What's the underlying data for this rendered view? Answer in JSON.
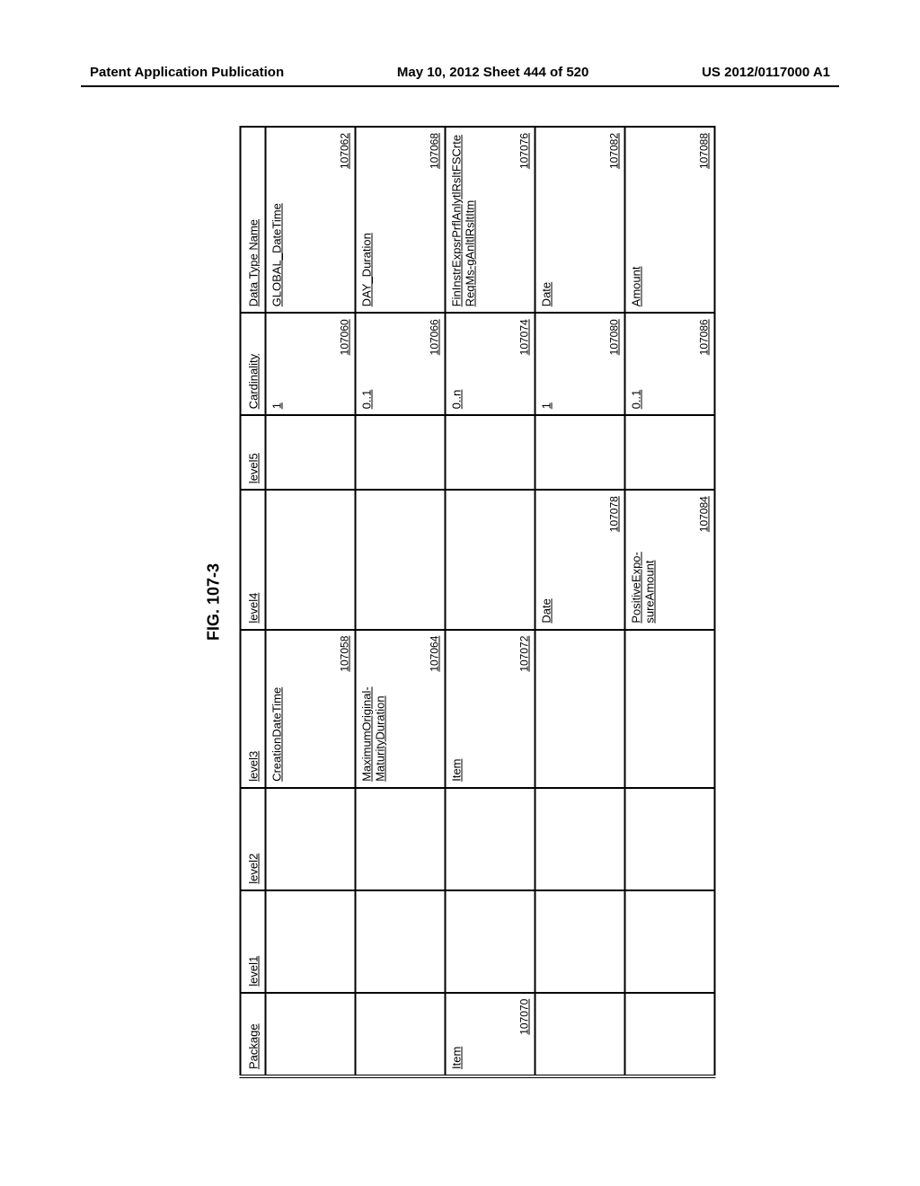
{
  "header": {
    "left": "Patent Application Publication",
    "center": "May 10, 2012  Sheet 444 of 520",
    "right": "US 2012/0117000 A1"
  },
  "figure": {
    "label": "FIG. 107-3",
    "columns": [
      "Package",
      "level1",
      "level2",
      "level3",
      "level4",
      "level5",
      "Cardinality",
      "Data Type Name"
    ],
    "rows": [
      {
        "package": {
          "text": "",
          "ref": ""
        },
        "l1": "",
        "l2": "",
        "l3": {
          "text": "CreationDateTime",
          "ref": "107058"
        },
        "l4": {
          "text": "",
          "ref": ""
        },
        "l5": "",
        "card": {
          "text": "1",
          "ref": "107060"
        },
        "dtn": {
          "text": "GLOBAL_DateTime",
          "ref": "107062"
        }
      },
      {
        "package": {
          "text": "",
          "ref": ""
        },
        "l1": "",
        "l2": "",
        "l3": {
          "text": "MaximumOriginal-MaturityDuration",
          "ref": "107064"
        },
        "l4": {
          "text": "",
          "ref": ""
        },
        "l5": "",
        "card": {
          "text": "0..1",
          "ref": "107066"
        },
        "dtn": {
          "text": "DAY_Duration",
          "ref": "107068"
        }
      },
      {
        "package": {
          "text": "Item",
          "ref": "107070"
        },
        "l1": "",
        "l2": "",
        "l3": {
          "text": "Item",
          "ref": "107072"
        },
        "l4": {
          "text": "",
          "ref": ""
        },
        "l5": "",
        "card": {
          "text": "0..n",
          "ref": "107074"
        },
        "dtn": {
          "text": "FinInstrExpsrPrflAnlytlRsltFSCrteReqMs-gAnltlRsltItm",
          "ref": "107076"
        }
      },
      {
        "package": {
          "text": "",
          "ref": ""
        },
        "l1": "",
        "l2": "",
        "l3": {
          "text": "",
          "ref": ""
        },
        "l4": {
          "text": "Date",
          "ref": "107078"
        },
        "l5": "",
        "card": {
          "text": "1",
          "ref": "107080"
        },
        "dtn": {
          "text": "Date",
          "ref": "107082"
        }
      },
      {
        "package": {
          "text": "",
          "ref": ""
        },
        "l1": "",
        "l2": "",
        "l3": {
          "text": "",
          "ref": ""
        },
        "l4": {
          "text": "PositiveExpo-sureAmount",
          "ref": "107084"
        },
        "l5": "",
        "card": {
          "text": "0..1",
          "ref": "107086"
        },
        "dtn": {
          "text": "Amount",
          "ref": "107088"
        }
      }
    ]
  }
}
